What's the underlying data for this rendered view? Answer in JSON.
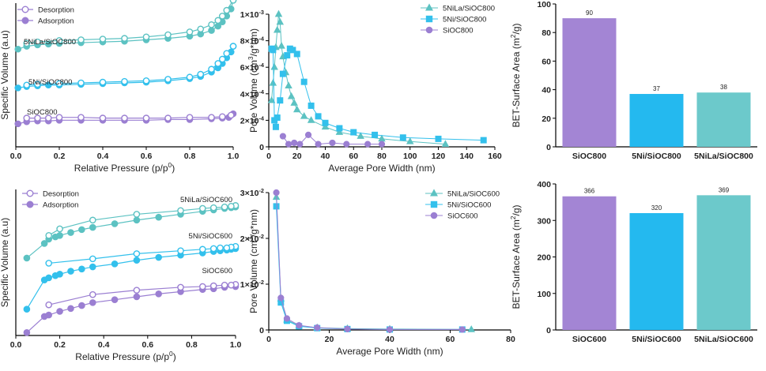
{
  "colors": {
    "purple": "#9b7fd2",
    "cyan": "#33c0ec",
    "teal": "#5cc2c2",
    "bar_purple": "#a385d4",
    "bar_cyan": "#24b9ef",
    "bar_teal": "#6cc9cb"
  },
  "chart_data": [
    {
      "id": "iso800",
      "type": "line",
      "title": "",
      "xlabel": "Relative Pressure (p/p0)",
      "ylabel": "Specific Volume (a.u)",
      "xlim": [
        0,
        1
      ],
      "ylim": [
        0,
        10
      ],
      "xticks": [
        "0.0",
        "0.2",
        "0.4",
        "0.6",
        "0.8",
        "1.0"
      ],
      "legend": [
        {
          "label": "Desorption",
          "marker": "open"
        },
        {
          "label": "Adsorption",
          "marker": "filled"
        }
      ],
      "series_labels": [
        "5NiLa/SiOC800",
        "5Ni/SiOC800",
        "SiOC800"
      ],
      "series": [
        {
          "name": "5NiLa/SiOC800",
          "color": "teal",
          "adsorption": {
            "x": [
              0.01,
              0.05,
              0.1,
              0.15,
              0.2,
              0.3,
              0.4,
              0.5,
              0.6,
              0.7,
              0.8,
              0.85,
              0.9,
              0.93,
              0.95,
              0.97,
              0.99,
              1.0
            ],
            "y": [
              6.8,
              7.0,
              7.1,
              7.15,
              7.2,
              7.25,
              7.3,
              7.35,
              7.45,
              7.55,
              7.7,
              7.85,
              8.1,
              8.4,
              8.7,
              9.1,
              9.6,
              10.2
            ]
          },
          "desorption": {
            "x": [
              1.0,
              0.97,
              0.95,
              0.93,
              0.9,
              0.85,
              0.8,
              0.7,
              0.6,
              0.5,
              0.4,
              0.3,
              0.2,
              0.1,
              0.05
            ],
            "y": [
              10.2,
              9.5,
              9.1,
              8.8,
              8.5,
              8.2,
              8.0,
              7.8,
              7.65,
              7.55,
              7.5,
              7.45,
              7.4,
              7.3,
              7.2
            ]
          }
        },
        {
          "name": "5Ni/SiOC800",
          "color": "cyan",
          "adsorption": {
            "x": [
              0.01,
              0.05,
              0.1,
              0.15,
              0.2,
              0.3,
              0.4,
              0.5,
              0.6,
              0.7,
              0.8,
              0.85,
              0.9,
              0.93,
              0.95,
              0.97,
              0.99,
              1.0
            ],
            "y": [
              4.1,
              4.2,
              4.25,
              4.3,
              4.3,
              4.35,
              4.4,
              4.45,
              4.5,
              4.6,
              4.75,
              4.9,
              5.2,
              5.5,
              5.8,
              6.2,
              6.6,
              7.0
            ]
          },
          "desorption": {
            "x": [
              1.0,
              0.97,
              0.95,
              0.93,
              0.9,
              0.85,
              0.8,
              0.7,
              0.6,
              0.5,
              0.4,
              0.3,
              0.2,
              0.1,
              0.05
            ],
            "y": [
              7.0,
              6.5,
              6.1,
              5.8,
              5.4,
              5.05,
              4.85,
              4.7,
              4.6,
              4.55,
              4.5,
              4.45,
              4.4,
              4.35,
              4.3
            ]
          }
        },
        {
          "name": "SiOC800",
          "color": "purple",
          "adsorption": {
            "x": [
              0.01,
              0.05,
              0.1,
              0.15,
              0.2,
              0.3,
              0.4,
              0.5,
              0.6,
              0.7,
              0.8,
              0.9,
              0.95,
              0.98,
              1.0
            ],
            "y": [
              1.6,
              1.75,
              1.8,
              1.8,
              1.85,
              1.85,
              1.85,
              1.85,
              1.85,
              1.9,
              1.9,
              1.95,
              2.0,
              2.05,
              2.3
            ]
          },
          "desorption": {
            "x": [
              0.99,
              0.95,
              0.9,
              0.8,
              0.7,
              0.6,
              0.5,
              0.4,
              0.3,
              0.2,
              0.15,
              0.1,
              0.05
            ],
            "y": [
              2.2,
              2.1,
              2.05,
              2.05,
              2.0,
              2.0,
              2.0,
              2.0,
              2.05,
              2.05,
              2.0,
              2.0,
              2.0
            ]
          }
        }
      ]
    },
    {
      "id": "pore800",
      "type": "line",
      "title": "",
      "xlabel": "Average Pore Width (nm)",
      "ylabel": "Pore Volume (cm3/g*nm)",
      "xlim": [
        0,
        160
      ],
      "ylim": [
        0,
        0.001
      ],
      "xticks": [
        "0",
        "20",
        "40",
        "60",
        "80",
        "100",
        "120",
        "140",
        "160"
      ],
      "yticks": [
        "0",
        "2×10-4",
        "4×10-4",
        "6×10-4",
        "8×10-4",
        "1×10-3"
      ],
      "legend": [
        "5NiLa/SiOC800",
        "5Ni/SiOC800",
        "SiOC800"
      ],
      "series": [
        {
          "name": "5NiLa/SiOC800",
          "color": "teal",
          "marker": "triangle",
          "x": [
            2,
            3,
            4,
            5,
            6,
            7,
            8,
            9,
            10,
            12,
            14,
            16,
            18,
            20,
            25,
            30,
            40,
            50,
            65,
            80,
            100,
            125
          ],
          "y": [
            0.00035,
            0.00048,
            0.0006,
            0.00075,
            0.00088,
            0.001,
            0.00094,
            0.00076,
            0.00068,
            0.00056,
            0.00046,
            0.00038,
            0.00033,
            0.00028,
            0.00023,
            0.0002,
            0.00015,
            0.00011,
            8e-05,
            6e-05,
            4e-05,
            2e-05
          ]
        },
        {
          "name": "5Ni/SiOC800",
          "color": "cyan",
          "marker": "square",
          "x": [
            2,
            3,
            4,
            5,
            6,
            8,
            10,
            13,
            15,
            17,
            20,
            25,
            30,
            35,
            40,
            50,
            60,
            75,
            95,
            120,
            152
          ],
          "y": [
            0.00074,
            0.00073,
            0.0002,
            0.00015,
            0.00022,
            0.00035,
            0.00055,
            0.00069,
            0.00074,
            0.00073,
            0.0007,
            0.00049,
            0.00031,
            0.00023,
            0.00018,
            0.00014,
            0.00011,
            9e-05,
            7e-05,
            6e-05,
            5e-05
          ]
        },
        {
          "name": "SiOC800",
          "color": "purple",
          "marker": "circle",
          "x": [
            10,
            14,
            18,
            22,
            28,
            35,
            45,
            55,
            70,
            80
          ],
          "y": [
            8e-05,
            2e-05,
            3e-05,
            2e-05,
            9e-05,
            2e-05,
            3e-05,
            2e-05,
            2e-05,
            2e-05
          ]
        }
      ]
    },
    {
      "id": "bet800",
      "type": "bar",
      "title": "",
      "xlabel": "",
      "ylabel": "BET-Surface Area (m2/g)",
      "ylim": [
        0,
        100
      ],
      "yticks": [
        "0",
        "20",
        "40",
        "60",
        "80",
        "100"
      ],
      "categories": [
        "SiOC800",
        "5Ni/SiOC800",
        "5NiLa/SiOC800"
      ],
      "values": [
        90,
        37,
        38
      ],
      "value_labels": [
        "90",
        "37",
        "38"
      ],
      "colors": [
        "bar_purple",
        "bar_cyan",
        "bar_teal"
      ]
    },
    {
      "id": "iso600",
      "type": "line",
      "title": "",
      "xlabel": "Relative Pressure (p/p0)",
      "ylabel": "Specific Volume (a.u)",
      "xlim": [
        0,
        1
      ],
      "ylim": [
        0,
        10
      ],
      "xticks": [
        "0.0",
        "0.2",
        "0.4",
        "0.6",
        "0.8",
        "1.0"
      ],
      "legend": [
        {
          "label": "Desorption",
          "marker": "open"
        },
        {
          "label": "Adsorption",
          "marker": "filled"
        }
      ],
      "series_labels": [
        "5NiLa/SiOC600",
        "5Ni/SiOC600",
        "SiOC600"
      ],
      "series": [
        {
          "name": "5NiLa/SiOC600",
          "color": "teal",
          "adsorption": {
            "x": [
              0.05,
              0.13,
              0.15,
              0.18,
              0.2,
              0.25,
              0.3,
              0.35,
              0.45,
              0.55,
              0.65,
              0.75,
              0.85,
              0.9,
              0.95,
              0.98,
              1.0
            ],
            "y": [
              5.3,
              6.3,
              6.6,
              6.75,
              6.85,
              7.05,
              7.25,
              7.4,
              7.65,
              7.9,
              8.1,
              8.3,
              8.5,
              8.6,
              8.7,
              8.75,
              8.8
            ]
          },
          "desorption": {
            "x": [
              1.0,
              0.98,
              0.95,
              0.9,
              0.85,
              0.75,
              0.55,
              0.35,
              0.2,
              0.15
            ],
            "y": [
              8.9,
              8.85,
              8.8,
              8.75,
              8.7,
              8.55,
              8.3,
              7.9,
              7.3,
              6.85
            ]
          }
        },
        {
          "name": "5Ni/SiOC600",
          "color": "cyan",
          "adsorption": {
            "x": [
              0.05,
              0.13,
              0.15,
              0.18,
              0.2,
              0.25,
              0.3,
              0.35,
              0.45,
              0.55,
              0.65,
              0.75,
              0.85,
              0.9,
              0.93,
              0.96,
              0.98,
              1.0
            ],
            "y": [
              1.8,
              3.8,
              3.95,
              4.1,
              4.2,
              4.4,
              4.55,
              4.7,
              4.9,
              5.15,
              5.35,
              5.5,
              5.65,
              5.75,
              5.8,
              5.85,
              5.9,
              5.95
            ]
          },
          "desorption": {
            "x": [
              1.0,
              0.98,
              0.96,
              0.93,
              0.9,
              0.85,
              0.75,
              0.55,
              0.35,
              0.15
            ],
            "y": [
              6.1,
              6.05,
              6.0,
              6.0,
              5.95,
              5.9,
              5.8,
              5.6,
              5.25,
              4.95
            ]
          }
        },
        {
          "name": "SiOC600",
          "color": "purple",
          "adsorption": {
            "x": [
              0.05,
              0.13,
              0.15,
              0.2,
              0.25,
              0.3,
              0.35,
              0.45,
              0.55,
              0.65,
              0.75,
              0.85,
              0.9,
              0.95,
              1.0
            ],
            "y": [
              0.2,
              1.3,
              1.4,
              1.65,
              1.85,
              2.05,
              2.25,
              2.45,
              2.65,
              2.85,
              3.0,
              3.15,
              3.2,
              3.3,
              3.35
            ]
          },
          "desorption": {
            "x": [
              1.0,
              0.98,
              0.95,
              0.9,
              0.85,
              0.75,
              0.55,
              0.35,
              0.15
            ],
            "y": [
              3.5,
              3.45,
              3.45,
              3.4,
              3.35,
              3.3,
              3.1,
              2.8,
              2.1
            ]
          }
        }
      ]
    },
    {
      "id": "pore600",
      "type": "line",
      "title": "",
      "xlabel": "Average Pore Width (nm)",
      "ylabel": "Pore Volume (cm3/g*nm)",
      "xlim": [
        0,
        80
      ],
      "ylim": [
        0,
        0.03
      ],
      "xticks": [
        "0",
        "20",
        "40",
        "60",
        "80"
      ],
      "yticks": [
        "0",
        "1×10-2",
        "2×10-2",
        "3×10-2"
      ],
      "legend": [
        "5NiLa/SiOC600",
        "5Ni/SiOC600",
        "SiOC600"
      ],
      "series": [
        {
          "name": "5NiLa/SiOC600",
          "color": "teal",
          "marker": "triangle",
          "x": [
            2.5,
            4,
            6,
            10,
            16,
            26,
            40,
            67
          ],
          "y": [
            0.029,
            0.0068,
            0.0022,
            0.0009,
            0.0005,
            0.0003,
            0.0002,
            0.0001
          ]
        },
        {
          "name": "5Ni/SiOC600",
          "color": "cyan",
          "marker": "square",
          "x": [
            2.5,
            4,
            6,
            10,
            16,
            26,
            40,
            64
          ],
          "y": [
            0.027,
            0.006,
            0.002,
            0.0008,
            0.0004,
            0.0002,
            0.0001,
            0.0001
          ]
        },
        {
          "name": "SiOC600",
          "color": "purple",
          "marker": "circle",
          "x": [
            2.5,
            4,
            6,
            10,
            16,
            26,
            40,
            64
          ],
          "y": [
            0.03,
            0.007,
            0.0025,
            0.001,
            0.0005,
            0.0002,
            0.0001,
            0.0001
          ]
        }
      ]
    },
    {
      "id": "bet600",
      "type": "bar",
      "title": "",
      "xlabel": "",
      "ylabel": "BET-Surface Area (m2/g)",
      "ylim": [
        0,
        400
      ],
      "yticks": [
        "0",
        "100",
        "200",
        "300",
        "400"
      ],
      "categories": [
        "SiOC600",
        "5Ni/SiOC600",
        "5NiLa/SiOC600"
      ],
      "values": [
        366,
        320,
        369
      ],
      "value_labels": [
        "366",
        "320",
        "369"
      ],
      "colors": [
        "bar_purple",
        "bar_cyan",
        "bar_teal"
      ]
    }
  ]
}
